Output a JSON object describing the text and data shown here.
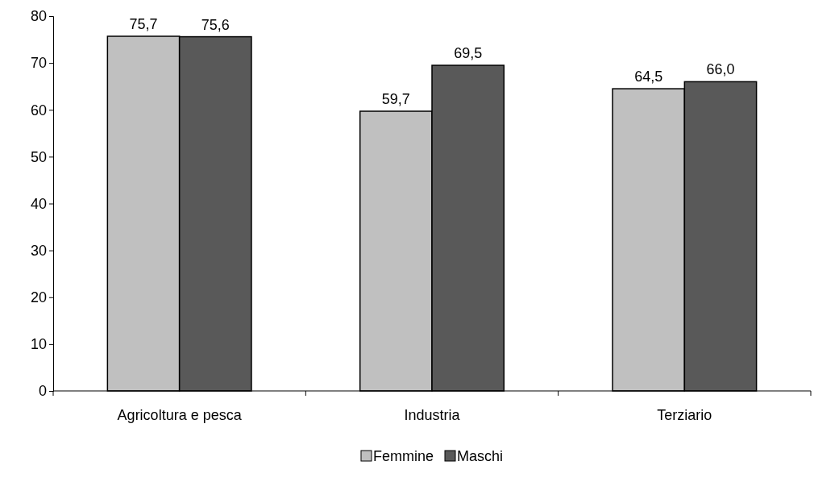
{
  "chart_data": {
    "type": "bar",
    "categories": [
      "Agricoltura e pesca",
      "Industria",
      "Terziario"
    ],
    "series": [
      {
        "name": "Femmine",
        "color": "#c0c0c0",
        "values": [
          75.7,
          59.7,
          64.5
        ],
        "value_labels": [
          "75,7",
          "59,7",
          "64,5"
        ]
      },
      {
        "name": "Maschi",
        "color": "#595959",
        "values": [
          75.6,
          69.5,
          66.0
        ],
        "value_labels": [
          "75,6",
          "69,5",
          "66,0"
        ]
      }
    ],
    "ylim": [
      0,
      80
    ],
    "yticks": [
      0,
      10,
      20,
      30,
      40,
      50,
      60,
      70,
      80
    ],
    "grid": false,
    "legend": "bottom"
  }
}
